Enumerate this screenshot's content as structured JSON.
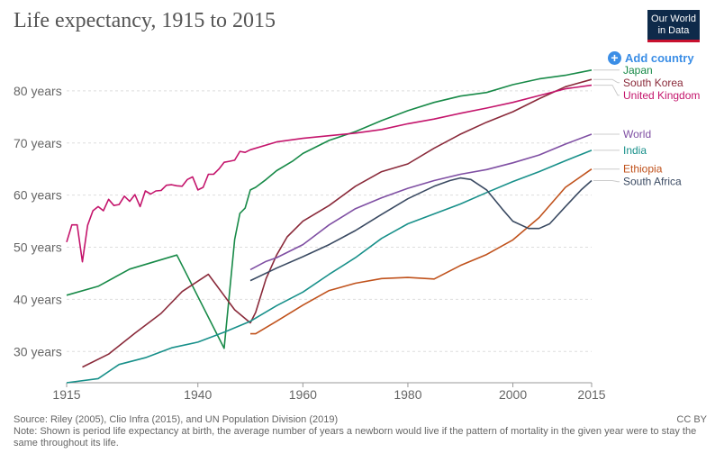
{
  "header": {
    "title": "Life expectancy, 1915 to 2015",
    "logo_line1": "Our World",
    "logo_line2": "in Data",
    "add_country": "Add country"
  },
  "footer": {
    "source": "Source: Riley (2005), Clio Infra (2015), and UN Population Division (2019)",
    "license": "CC BY",
    "note": "Note: Shown is period life expectancy at birth, the average number of years a newborn would live if the pattern of mortality in the given year were to stay the same throughout its life."
  },
  "chart_data": {
    "type": "line",
    "title": "Life expectancy, 1915 to 2015",
    "xlabel": "",
    "ylabel": "",
    "xlim": [
      1915,
      2015
    ],
    "ylim": [
      24,
      85
    ],
    "x_ticks": [
      1915,
      1940,
      1960,
      1980,
      2000,
      2015
    ],
    "x_tick_labels": [
      "1915",
      "1940",
      "1960",
      "1980",
      "2000",
      "2015"
    ],
    "y_ticks": [
      30,
      40,
      50,
      60,
      70,
      80
    ],
    "y_tick_labels": [
      "30 years",
      "40 years",
      "50 years",
      "60 years",
      "70 years",
      "80 years"
    ],
    "grid": "horizontal dashed",
    "legend": "right, end-of-line labels",
    "series": [
      {
        "name": "Japan",
        "color": "#188a48",
        "points": [
          [
            1915,
            40.8
          ],
          [
            1921,
            42.5
          ],
          [
            1927,
            45.8
          ],
          [
            1936,
            48.5
          ],
          [
            1945,
            30.6
          ],
          [
            1947,
            51.5
          ],
          [
            1948,
            56.5
          ],
          [
            1949,
            57.5
          ],
          [
            1950,
            61.0
          ],
          [
            1951,
            61.5
          ],
          [
            1953,
            63.0
          ],
          [
            1955,
            64.7
          ],
          [
            1958,
            66.5
          ],
          [
            1960,
            68.0
          ],
          [
            1965,
            70.5
          ],
          [
            1970,
            72.2
          ],
          [
            1975,
            74.3
          ],
          [
            1980,
            76.2
          ],
          [
            1985,
            77.8
          ],
          [
            1990,
            79.0
          ],
          [
            1995,
            79.7
          ],
          [
            2000,
            81.2
          ],
          [
            2005,
            82.3
          ],
          [
            2010,
            83.0
          ],
          [
            2015,
            84.0
          ]
        ]
      },
      {
        "name": "South Korea",
        "color": "#8a2a3a",
        "points": [
          [
            1918,
            27.0
          ],
          [
            1923,
            29.5
          ],
          [
            1928,
            33.5
          ],
          [
            1933,
            37.3
          ],
          [
            1937,
            41.5
          ],
          [
            1942,
            44.8
          ],
          [
            1947,
            38.0
          ],
          [
            1950,
            35.5
          ],
          [
            1951,
            37.5
          ],
          [
            1953,
            44.0
          ],
          [
            1955,
            48.5
          ],
          [
            1957,
            52.0
          ],
          [
            1960,
            55.0
          ],
          [
            1965,
            58.0
          ],
          [
            1970,
            61.7
          ],
          [
            1975,
            64.5
          ],
          [
            1980,
            66.0
          ],
          [
            1985,
            69.0
          ],
          [
            1990,
            71.7
          ],
          [
            1995,
            74.0
          ],
          [
            2000,
            76.0
          ],
          [
            2005,
            78.5
          ],
          [
            2010,
            80.8
          ],
          [
            2015,
            82.2
          ]
        ]
      },
      {
        "name": "United Kingdom",
        "color": "#c4156c",
        "points": [
          [
            1915,
            51.0
          ],
          [
            1916,
            54.3
          ],
          [
            1917,
            54.3
          ],
          [
            1918,
            47.2
          ],
          [
            1919,
            54.2
          ],
          [
            1920,
            57.0
          ],
          [
            1921,
            57.8
          ],
          [
            1922,
            57.0
          ],
          [
            1923,
            59.2
          ],
          [
            1924,
            58.0
          ],
          [
            1925,
            58.2
          ],
          [
            1926,
            59.8
          ],
          [
            1927,
            58.8
          ],
          [
            1928,
            60.1
          ],
          [
            1929,
            57.8
          ],
          [
            1930,
            60.8
          ],
          [
            1931,
            60.2
          ],
          [
            1932,
            60.8
          ],
          [
            1933,
            60.9
          ],
          [
            1934,
            61.9
          ],
          [
            1935,
            62.0
          ],
          [
            1936,
            61.8
          ],
          [
            1937,
            61.7
          ],
          [
            1938,
            63.0
          ],
          [
            1939,
            63.5
          ],
          [
            1940,
            61.0
          ],
          [
            1941,
            61.5
          ],
          [
            1942,
            64.0
          ],
          [
            1943,
            64.0
          ],
          [
            1944,
            65.0
          ],
          [
            1945,
            66.3
          ],
          [
            1946,
            66.5
          ],
          [
            1947,
            66.7
          ],
          [
            1948,
            68.4
          ],
          [
            1949,
            68.2
          ],
          [
            1950,
            68.7
          ],
          [
            1955,
            70.2
          ],
          [
            1960,
            70.9
          ],
          [
            1965,
            71.4
          ],
          [
            1970,
            71.9
          ],
          [
            1975,
            72.6
          ],
          [
            1980,
            73.7
          ],
          [
            1985,
            74.6
          ],
          [
            1990,
            75.7
          ],
          [
            1995,
            76.7
          ],
          [
            2000,
            77.8
          ],
          [
            2005,
            79.1
          ],
          [
            2010,
            80.4
          ],
          [
            2015,
            81.1
          ]
        ]
      },
      {
        "name": "World",
        "color": "#7f4fa3",
        "points": [
          [
            1950,
            45.7
          ],
          [
            1953,
            47.3
          ],
          [
            1955,
            48.0
          ],
          [
            1960,
            50.5
          ],
          [
            1965,
            54.3
          ],
          [
            1970,
            57.4
          ],
          [
            1975,
            59.5
          ],
          [
            1980,
            61.3
          ],
          [
            1985,
            62.8
          ],
          [
            1990,
            64.0
          ],
          [
            1995,
            64.9
          ],
          [
            2000,
            66.2
          ],
          [
            2005,
            67.7
          ],
          [
            2010,
            69.8
          ],
          [
            2015,
            71.7
          ]
        ]
      },
      {
        "name": "India",
        "color": "#18908a",
        "points": [
          [
            1915,
            24.0
          ],
          [
            1921,
            24.8
          ],
          [
            1925,
            27.5
          ],
          [
            1930,
            28.8
          ],
          [
            1935,
            30.7
          ],
          [
            1940,
            31.8
          ],
          [
            1945,
            33.7
          ],
          [
            1950,
            35.8
          ],
          [
            1955,
            38.8
          ],
          [
            1960,
            41.4
          ],
          [
            1965,
            44.8
          ],
          [
            1970,
            48.0
          ],
          [
            1975,
            51.7
          ],
          [
            1980,
            54.5
          ],
          [
            1985,
            56.4
          ],
          [
            1990,
            58.3
          ],
          [
            1995,
            60.5
          ],
          [
            2000,
            62.6
          ],
          [
            2005,
            64.5
          ],
          [
            2010,
            66.6
          ],
          [
            2015,
            68.6
          ]
        ]
      },
      {
        "name": "Ethiopia",
        "color": "#c0521c",
        "points": [
          [
            1950,
            33.4
          ],
          [
            1951,
            33.4
          ],
          [
            1955,
            35.8
          ],
          [
            1960,
            38.9
          ],
          [
            1965,
            41.7
          ],
          [
            1970,
            43.1
          ],
          [
            1975,
            44.0
          ],
          [
            1980,
            44.2
          ],
          [
            1985,
            43.9
          ],
          [
            1990,
            46.5
          ],
          [
            1995,
            48.6
          ],
          [
            2000,
            51.4
          ],
          [
            2005,
            55.7
          ],
          [
            2010,
            61.5
          ],
          [
            2015,
            65.0
          ]
        ]
      },
      {
        "name": "South Africa",
        "color": "#3a4a62",
        "points": [
          [
            1950,
            43.6
          ],
          [
            1955,
            46.0
          ],
          [
            1960,
            48.2
          ],
          [
            1965,
            50.5
          ],
          [
            1970,
            53.2
          ],
          [
            1975,
            56.3
          ],
          [
            1980,
            59.3
          ],
          [
            1985,
            61.7
          ],
          [
            1988,
            62.8
          ],
          [
            1990,
            63.3
          ],
          [
            1992,
            63.0
          ],
          [
            1995,
            61.0
          ],
          [
            1998,
            57.3
          ],
          [
            2000,
            55.0
          ],
          [
            2003,
            53.6
          ],
          [
            2005,
            53.6
          ],
          [
            2007,
            54.5
          ],
          [
            2010,
            57.8
          ],
          [
            2013,
            61.0
          ],
          [
            2015,
            62.8
          ]
        ]
      }
    ]
  }
}
